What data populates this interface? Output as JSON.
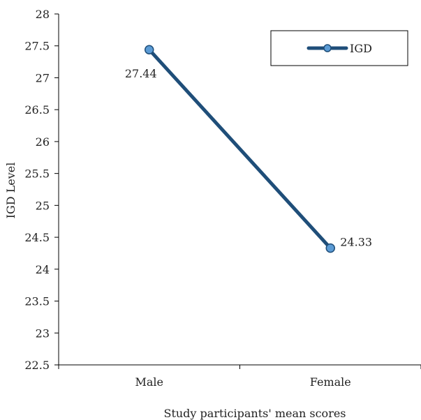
{
  "chart_data": {
    "type": "line",
    "title": "",
    "xlabel": "Study participants' mean scores",
    "ylabel": "IGD Level",
    "categories": [
      "Male",
      "Female"
    ],
    "series": [
      {
        "name": "IGD",
        "values": [
          27.44,
          24.33
        ],
        "data_labels": [
          "27.44",
          "24.33"
        ]
      }
    ],
    "ylim": [
      22.5,
      28
    ],
    "yticks": [
      "28",
      "27.5",
      "27",
      "26.5",
      "26",
      "25.5",
      "25",
      "24.5",
      "24",
      "23.5",
      "23",
      "22.5"
    ],
    "grid": false,
    "legend_position": "top-right",
    "colors": {
      "line": "#1f4e79",
      "marker_fill": "#5b9bd5",
      "marker_edge": "#1f4e79",
      "axis": "#000000"
    }
  }
}
